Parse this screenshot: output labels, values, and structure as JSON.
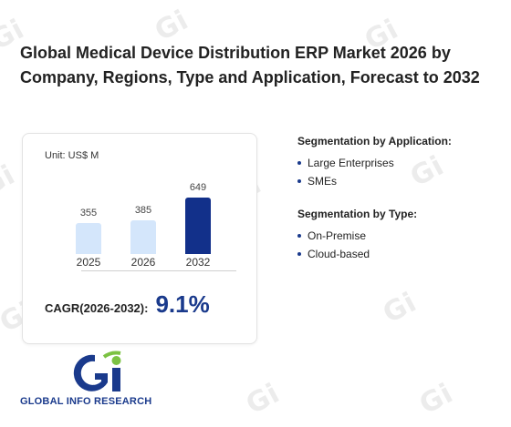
{
  "page": {
    "title": "Global Medical Device Distribution ERP Market 2026 by Company, Regions, Type and Application, Forecast to 2032"
  },
  "chart_data": {
    "type": "bar",
    "unit_label": "Unit: US$ M",
    "categories": [
      "2025",
      "2026",
      "2032"
    ],
    "values": [
      355,
      385,
      649
    ],
    "value_labels": [
      "355",
      "385",
      "649"
    ],
    "bar_colors": [
      "#d4e6fb",
      "#d4e6fb",
      "#12308a"
    ],
    "ylim": [
      0,
      700
    ],
    "grid": false
  },
  "cagr": {
    "label": "CAGR(2026-2032):",
    "value": "9.1%"
  },
  "segmentation": {
    "application": {
      "title": "Segmentation by Application:",
      "items": [
        "Large Enterprises",
        "SMEs"
      ]
    },
    "type": {
      "title": "Segmentation by Type:",
      "items": [
        "On-Premise",
        "Cloud-based"
      ]
    }
  },
  "logo": {
    "text": "GLOBAL INFO RESEARCH",
    "primary_color": "#1a3a8c",
    "accent_color": "#7cc243"
  }
}
